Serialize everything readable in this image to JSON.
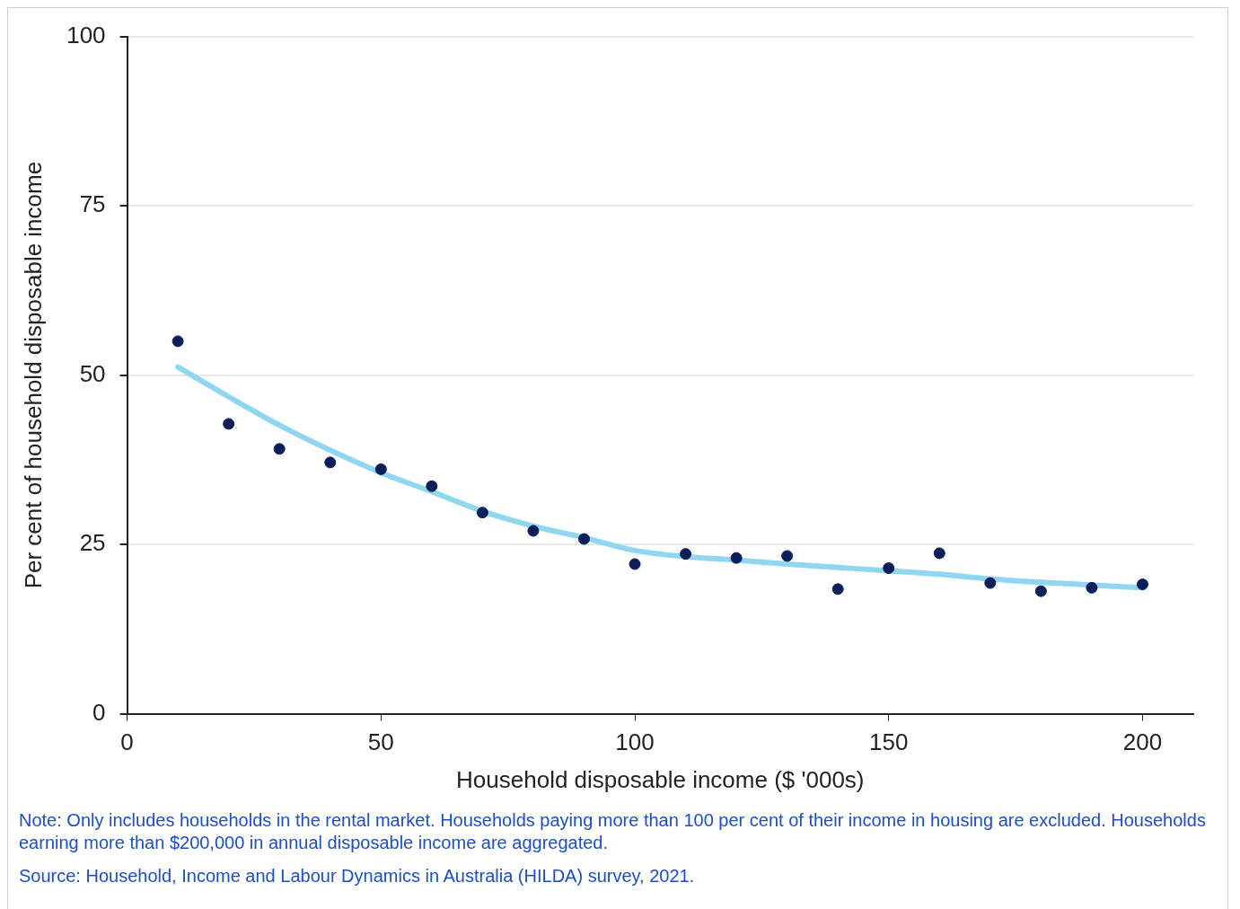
{
  "chart_data": {
    "type": "scatter",
    "xlabel": "Household disposable income ($ '000s)",
    "ylabel": "Per cent of household disposable income",
    "xlim": [
      0,
      210
    ],
    "xticks": [
      0,
      50,
      100,
      150,
      200
    ],
    "ylim": [
      0,
      100
    ],
    "yticks": [
      0,
      25,
      50,
      75,
      100
    ],
    "grid": "y",
    "legend": false,
    "marker": "circle",
    "series": [
      {
        "color": "#0b1f5a",
        "x": [
          10,
          20,
          30,
          40,
          50,
          60,
          70,
          80,
          90,
          100,
          110,
          120,
          130,
          140,
          150,
          160,
          170,
          180,
          190,
          200
        ],
        "values": [
          55,
          42.8,
          39.1,
          37.1,
          36.1,
          33.6,
          29.7,
          27,
          25.8,
          22.1,
          23.6,
          23,
          23.3,
          18.4,
          21.5,
          23.7,
          19.3,
          18.1,
          18.6,
          19.1
        ]
      },
      {
        "type": "line",
        "color": "#8fd6f0",
        "marker": "none",
        "x": [
          10,
          20,
          30,
          40,
          50,
          60,
          70,
          80,
          90,
          100,
          110,
          120,
          130,
          140,
          150,
          160,
          170,
          180,
          190,
          200
        ],
        "values": [
          51.2,
          46.8,
          42.6,
          38.9,
          35.6,
          32.8,
          29.9,
          27.7,
          26,
          24.1,
          23.2,
          22.7,
          22.1,
          21.6,
          21.1,
          20.6,
          19.9,
          19.4,
          19,
          18.6
        ]
      }
    ],
    "annotations": [
      "Note: Only includes households in the rental market. Households paying more than 100 per cent of their income in housing are excluded. Households earning more than $200,000 in annual disposable income are aggregated.",
      "Source: Household, Income and Labour Dynamics in Australia (HILDA) survey, 2021."
    ]
  }
}
